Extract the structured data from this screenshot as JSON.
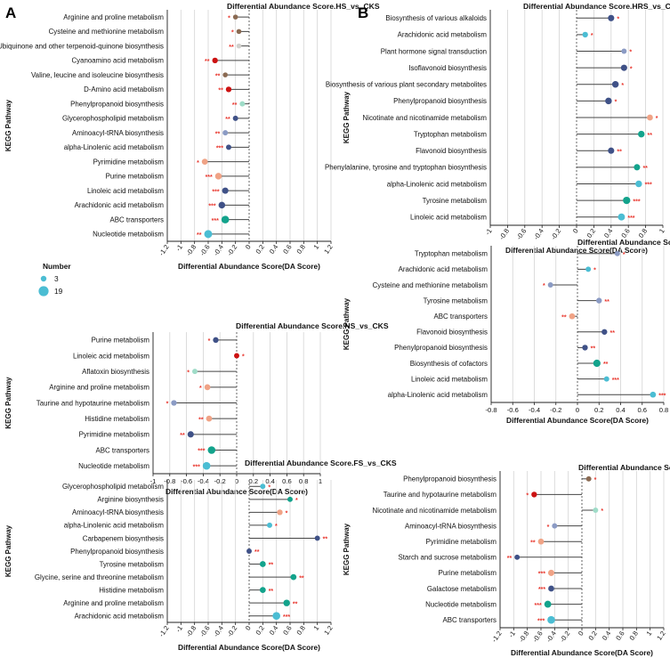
{
  "panel_labels": [
    "A",
    "B"
  ],
  "legend": {
    "title": "Number",
    "labels": [
      "3",
      "19"
    ],
    "color": "#4bbdd3"
  },
  "xlabel": "Differential Abundance Score(DA Score)",
  "ylabel": "KEGG Pathway",
  "colors": {
    "grid": "#d4d4d4",
    "stem": "#444444",
    "zero": "#555555",
    "sig": "#e8332a"
  },
  "chart_data": [
    {
      "id": "HS",
      "type": "lollipop",
      "title": "Differential Abundance Score.HS_vs_CKS",
      "xlabel": "Differential Abundance Score(DA Score)",
      "ylabel": "KEGG Pathway",
      "xlim": [
        -1.2,
        1.2
      ],
      "xticks": [
        "-1.2",
        "-1",
        "-0.8",
        "-0.6",
        "-0.4",
        "-0.2",
        "0",
        "0.2",
        "0.4",
        "0.6",
        "0.8",
        "1",
        "1.2"
      ],
      "rotated_ticks": true,
      "items": [
        {
          "label": "Arginine and proline metabolism",
          "value": -0.2,
          "number": 4,
          "color": "#8a6a52",
          "sig": "*"
        },
        {
          "label": "Cysteine and methionine metabolism",
          "value": -0.15,
          "number": 4,
          "color": "#8a6a52",
          "sig": "*"
        },
        {
          "label": "Ubiquinone and other terpenoid-quinone biosynthesis",
          "value": -0.15,
          "number": 4,
          "color": "#d0d0cc",
          "sig": "**"
        },
        {
          "label": "Cyanoamino acid metabolism",
          "value": -0.5,
          "number": 6,
          "color": "#cc1212",
          "sig": "**"
        },
        {
          "label": "Valine, leucine and isoleucine biosynthesis",
          "value": -0.35,
          "number": 4,
          "color": "#8a6a52",
          "sig": "**"
        },
        {
          "label": "D-Amino acid metabolism",
          "value": -0.3,
          "number": 6,
          "color": "#cc1212",
          "sig": "**"
        },
        {
          "label": "Phenylpropanoid biosynthesis",
          "value": -0.1,
          "number": 5,
          "color": "#9fdcc8",
          "sig": "**"
        },
        {
          "label": "Glycerophospholipid metabolism",
          "value": -0.2,
          "number": 5,
          "color": "#3f5187",
          "sig": "**"
        },
        {
          "label": "Aminoacyl-tRNA biosynthesis",
          "value": -0.35,
          "number": 5,
          "color": "#8b9bc4",
          "sig": "**"
        },
        {
          "label": "alpha-Linolenic acid metabolism",
          "value": -0.3,
          "number": 5,
          "color": "#3f5187",
          "sig": "***"
        },
        {
          "label": "Pyrimidine metabolism",
          "value": -0.65,
          "number": 7,
          "color": "#f0a386",
          "sig": "*"
        },
        {
          "label": "Purine metabolism",
          "value": -0.45,
          "number": 9,
          "color": "#f0a386",
          "sig": "***"
        },
        {
          "label": "Linoleic acid metabolism",
          "value": -0.35,
          "number": 8,
          "color": "#3f5187",
          "sig": "***"
        },
        {
          "label": "Arachidonic acid metabolism",
          "value": -0.4,
          "number": 9,
          "color": "#3f5187",
          "sig": "***"
        },
        {
          "label": "ABC transporters",
          "value": -0.35,
          "number": 12,
          "color": "#13a38c",
          "sig": "***"
        },
        {
          "label": "Nucleotide metabolism",
          "value": -0.6,
          "number": 13,
          "color": "#4bbdd3",
          "sig": "**"
        }
      ]
    },
    {
      "id": "NS",
      "type": "lollipop",
      "title": "Differential Abundance Score.NS_vs_CKS",
      "xlabel": "Differential Abundance Score(DA Score)",
      "ylabel": "KEGG Pathway",
      "xlim": [
        -1.0,
        1.0
      ],
      "xticks": [
        "-1",
        "-0.8",
        "-0.6",
        "-0.4",
        "-0.2",
        "0",
        "0.2",
        "0.4",
        "0.6",
        "0.8",
        "1"
      ],
      "rotated_ticks": false,
      "items": [
        {
          "label": "Purine metabolism",
          "value": -0.25,
          "number": 6,
          "color": "#3f5187",
          "sig": "*"
        },
        {
          "label": "Linoleic acid metabolism",
          "value": 0.0,
          "number": 5,
          "color": "#cc1212",
          "sig": "*"
        },
        {
          "label": "Aflatoxin biosynthesis",
          "value": -0.5,
          "number": 5,
          "color": "#9fdcc8",
          "sig": "*"
        },
        {
          "label": "Arginine and proline metabolism",
          "value": -0.35,
          "number": 7,
          "color": "#f0a386",
          "sig": "*"
        },
        {
          "label": "Taurine and hypotaurine metabolism",
          "value": -0.75,
          "number": 6,
          "color": "#8b9bc4",
          "sig": "*"
        },
        {
          "label": "Histidine metabolism",
          "value": -0.33,
          "number": 7,
          "color": "#f0a386",
          "sig": "**"
        },
        {
          "label": "Pyrimidine metabolism",
          "value": -0.55,
          "number": 8,
          "color": "#3f5187",
          "sig": "**"
        },
        {
          "label": "ABC transporters",
          "value": -0.3,
          "number": 12,
          "color": "#13a38c",
          "sig": "***"
        },
        {
          "label": "Nucleotide metabolism",
          "value": -0.36,
          "number": 12,
          "color": "#4bbdd3",
          "sig": "***"
        }
      ]
    },
    {
      "id": "FS",
      "type": "lollipop",
      "title": "Differential Abundance Score.FS_vs_CKS",
      "xlabel": "Differential Abundance Score(DA Score)",
      "ylabel": "KEGG Pathway",
      "xlim": [
        -1.2,
        1.2
      ],
      "xticks": [
        "-1.2",
        "-1",
        "-0.8",
        "-0.6",
        "-0.4",
        "-0.2",
        "0",
        "0.2",
        "0.4",
        "0.6",
        "0.8",
        "1",
        "1.2"
      ],
      "rotated_ticks": true,
      "items": [
        {
          "label": "Glycerophospholipid metabolism",
          "value": 0.2,
          "number": 5,
          "color": "#4bbdd3",
          "sig": "*"
        },
        {
          "label": "Arginine biosynthesis",
          "value": 0.6,
          "number": 5,
          "color": "#13a38c",
          "sig": "*"
        },
        {
          "label": "Aminoacyl-tRNA biosynthesis",
          "value": 0.45,
          "number": 6,
          "color": "#f0a386",
          "sig": "*"
        },
        {
          "label": "alpha-Linolenic acid metabolism",
          "value": 0.3,
          "number": 5,
          "color": "#4bbdd3",
          "sig": "*"
        },
        {
          "label": "Carbapenem biosynthesis",
          "value": 1.0,
          "number": 5,
          "color": "#3f5187",
          "sig": "**"
        },
        {
          "label": "Phenylpropanoid biosynthesis",
          "value": 0.0,
          "number": 5,
          "color": "#3f5187",
          "sig": "**"
        },
        {
          "label": "Tyrosine metabolism",
          "value": 0.2,
          "number": 7,
          "color": "#13a38c",
          "sig": "**"
        },
        {
          "label": "Glycine, serine and threonine metabolism",
          "value": 0.65,
          "number": 7,
          "color": "#13a38c",
          "sig": "**"
        },
        {
          "label": "Histidine metabolism",
          "value": 0.2,
          "number": 7,
          "color": "#13a38c",
          "sig": "**"
        },
        {
          "label": "Arginine and proline metabolism",
          "value": 0.55,
          "number": 9,
          "color": "#13a38c",
          "sig": "**"
        },
        {
          "label": "Arachidonic acid metabolism",
          "value": 0.4,
          "number": 12,
          "color": "#4bbdd3",
          "sig": "***"
        }
      ]
    },
    {
      "id": "HRS",
      "type": "lollipop",
      "title": "Differential Abundance Score.HRS_vs_CKRS",
      "xlabel": "Differential Abundance Score(DA Score)",
      "ylabel": "KEGG Pathway",
      "xlim": [
        -1.0,
        1.0
      ],
      "xticks": [
        "-1",
        "-0.8",
        "-0.6",
        "-0.4",
        "-0.2",
        "0",
        "0.2",
        "0.4",
        "0.6",
        "0.8",
        "1"
      ],
      "rotated_ticks": true,
      "items": [
        {
          "label": "Biosynthesis of various alkaloids",
          "value": 0.4,
          "number": 8,
          "color": "#3f5187",
          "sig": "*"
        },
        {
          "label": "Arachidonic acid metabolism",
          "value": 0.1,
          "number": 6,
          "color": "#4bbdd3",
          "sig": "*"
        },
        {
          "label": "Plant hormone signal transduction",
          "value": 0.55,
          "number": 5,
          "color": "#8b9bc4",
          "sig": "*"
        },
        {
          "label": "Isoflavonoid biosynthesis",
          "value": 0.55,
          "number": 8,
          "color": "#3f5187",
          "sig": "*"
        },
        {
          "label": "Biosynthesis of various plant secondary metabolites",
          "value": 0.45,
          "number": 9,
          "color": "#3f5187",
          "sig": "*"
        },
        {
          "label": "Phenylpropanoid biosynthesis",
          "value": 0.37,
          "number": 9,
          "color": "#3f5187",
          "sig": "*"
        },
        {
          "label": "Nicotinate and nicotinamide metabolism",
          "value": 0.85,
          "number": 7,
          "color": "#f0a386",
          "sig": "*"
        },
        {
          "label": "Tryptophan metabolism",
          "value": 0.75,
          "number": 9,
          "color": "#13a38c",
          "sig": "**"
        },
        {
          "label": "Flavonoid biosynthesis",
          "value": 0.4,
          "number": 8,
          "color": "#3f5187",
          "sig": "**"
        },
        {
          "label": "Phenylalanine, tyrosine and tryptophan biosynthesis",
          "value": 0.7,
          "number": 8,
          "color": "#13a38c",
          "sig": "**"
        },
        {
          "label": "alpha-Linolenic acid metabolism",
          "value": 0.72,
          "number": 9,
          "color": "#4bbdd3",
          "sig": "***"
        },
        {
          "label": "Tyrosine metabolism",
          "value": 0.58,
          "number": 11,
          "color": "#13a38c",
          "sig": "***"
        },
        {
          "label": "Linoleic acid metabolism",
          "value": 0.52,
          "number": 10,
          "color": "#4bbdd3",
          "sig": "***"
        }
      ]
    },
    {
      "id": "NRS",
      "type": "lollipop",
      "title": "Differential Abundance Score.NRS_vs_CKRS",
      "xlabel": "Differential Abundance Score(DA Score)",
      "ylabel": "KEGG Pathway",
      "xlim": [
        -0.8,
        0.8
      ],
      "xticks": [
        "-0.8",
        "-0.6",
        "-0.4",
        "-0.2",
        "0",
        "0.2",
        "0.4",
        "0.6",
        "0.8"
      ],
      "rotated_ticks": false,
      "items": [
        {
          "label": "Tryptophan metabolism",
          "value": 0.37,
          "number": 5,
          "color": "#8b9bc4",
          "sig": "*"
        },
        {
          "label": "Arachidonic acid metabolism",
          "value": 0.1,
          "number": 5,
          "color": "#4bbdd3",
          "sig": "*"
        },
        {
          "label": "Cysteine and methionine metabolism",
          "value": -0.25,
          "number": 5,
          "color": "#8b9bc4",
          "sig": "*"
        },
        {
          "label": "Tyrosine metabolism",
          "value": 0.2,
          "number": 6,
          "color": "#8b9bc4",
          "sig": "**"
        },
        {
          "label": "ABC transporters",
          "value": -0.05,
          "number": 7,
          "color": "#f0a386",
          "sig": "**"
        },
        {
          "label": "Flavonoid biosynthesis",
          "value": 0.25,
          "number": 6,
          "color": "#3f5187",
          "sig": "**"
        },
        {
          "label": "Phenylpropanoid biosynthesis",
          "value": 0.07,
          "number": 6,
          "color": "#3f5187",
          "sig": "**"
        },
        {
          "label": "Biosynthesis of cofactors",
          "value": 0.18,
          "number": 11,
          "color": "#13a38c",
          "sig": "**"
        },
        {
          "label": "Linoleic acid metabolism",
          "value": 0.27,
          "number": 5,
          "color": "#4bbdd3",
          "sig": "***"
        },
        {
          "label": "alpha-Linolenic acid metabolism",
          "value": 0.7,
          "number": 7,
          "color": "#4bbdd3",
          "sig": "***"
        }
      ]
    },
    {
      "id": "FRS",
      "type": "lollipop",
      "title": "Differential Abundance Score.FRS_vs_CKRS",
      "xlabel": "Differential Abundance Score(DA Score)",
      "ylabel": "KEGG Pathway",
      "xlim": [
        -1.2,
        1.2
      ],
      "xticks": [
        "-1.2",
        "-1",
        "-0.8",
        "-0.6",
        "-0.4",
        "-0.2",
        "0",
        "0.2",
        "0.4",
        "0.6",
        "0.8",
        "1",
        "1.2"
      ],
      "rotated_ticks": true,
      "items": [
        {
          "label": "Phenylpropanoid biosynthesis",
          "value": 0.1,
          "number": 5,
          "color": "#8a6a52",
          "sig": "*"
        },
        {
          "label": "Taurine and hypotaurine metabolism",
          "value": -0.7,
          "number": 6,
          "color": "#cc1212",
          "sig": "*"
        },
        {
          "label": "Nicotinate and nicotinamide metabolism",
          "value": 0.2,
          "number": 5,
          "color": "#9fdcc8",
          "sig": "*"
        },
        {
          "label": "Aminoacyl-tRNA biosynthesis",
          "value": -0.4,
          "number": 5,
          "color": "#8b9bc4",
          "sig": "*"
        },
        {
          "label": "Pyrimidine metabolism",
          "value": -0.6,
          "number": 7,
          "color": "#f0a386",
          "sig": "**"
        },
        {
          "label": "Starch and sucrose metabolism",
          "value": -0.95,
          "number": 5,
          "color": "#3f5187",
          "sig": "**"
        },
        {
          "label": "Purine metabolism",
          "value": -0.45,
          "number": 8,
          "color": "#f0a386",
          "sig": "***"
        },
        {
          "label": "Galactose metabolism",
          "value": -0.45,
          "number": 7,
          "color": "#3f5187",
          "sig": "***"
        },
        {
          "label": "Nucleotide metabolism",
          "value": -0.5,
          "number": 10,
          "color": "#13a38c",
          "sig": "***"
        },
        {
          "label": "ABC transporters",
          "value": -0.45,
          "number": 12,
          "color": "#4bbdd3",
          "sig": "***"
        }
      ]
    }
  ]
}
